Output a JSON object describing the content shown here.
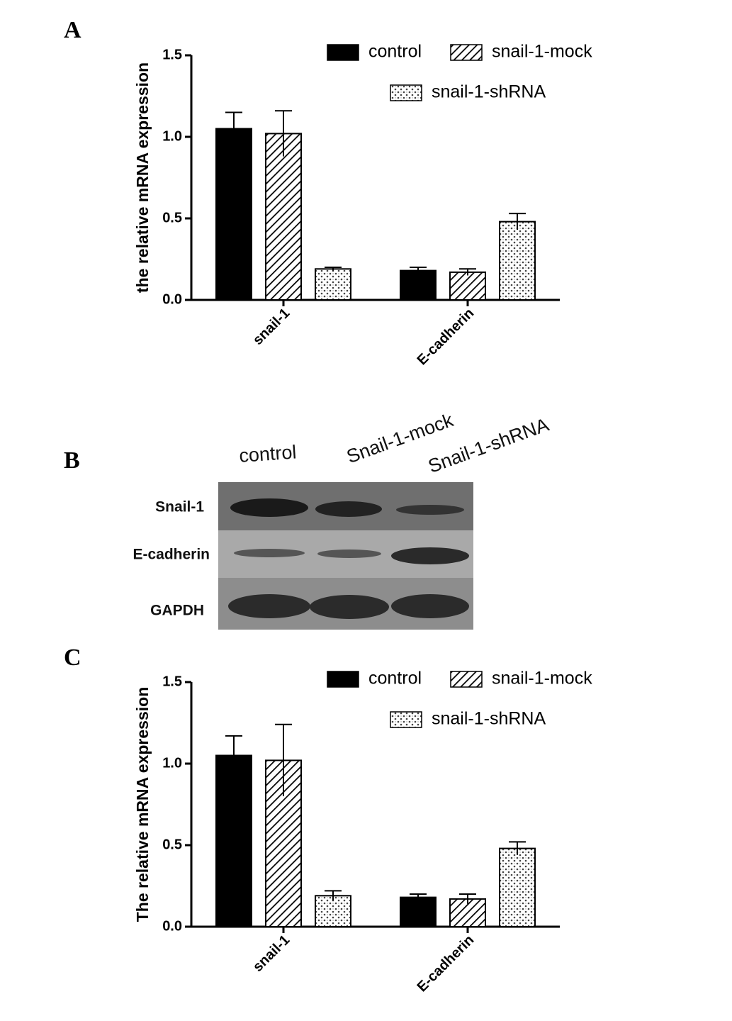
{
  "panel_labels": [
    "A",
    "B",
    "C"
  ],
  "blot": {
    "lanes": [
      "control",
      "Snail-1-mock",
      "Snail-1-shRNA"
    ],
    "rows": [
      "Snail-1",
      "E-cadherin",
      "GAPDH"
    ]
  },
  "chart_data": [
    {
      "type": "bar",
      "y_label": "the relative mRNA expression",
      "categories": [
        "snail-1",
        "E-cadherin"
      ],
      "series": [
        {
          "name": "control",
          "color": "#000000",
          "pattern": "solid",
          "values": [
            1.05,
            0.18
          ],
          "errors": [
            0.1,
            0.02
          ]
        },
        {
          "name": "snail-1-mock",
          "color": "#000000",
          "pattern": "hatch",
          "values": [
            1.02,
            0.17
          ],
          "errors": [
            0.14,
            0.02
          ]
        },
        {
          "name": "snail-1-shRNA",
          "color": "#000000",
          "pattern": "dots",
          "values": [
            0.19,
            0.48
          ],
          "errors": [
            0.01,
            0.05
          ]
        }
      ],
      "ylim": [
        0,
        1.5
      ],
      "yticks": [
        {
          "value": 0,
          "label": "0.0"
        },
        0.5,
        {
          "value": 1,
          "label": "1.0"
        },
        1.5
      ]
    },
    {
      "type": "bar",
      "y_label": "The relative mRNA expression",
      "categories": [
        "snail-1",
        "E-cadherin"
      ],
      "series": [
        {
          "name": "control",
          "color": "#000000",
          "pattern": "solid",
          "values": [
            1.05,
            0.18
          ],
          "errors": [
            0.12,
            0.02
          ]
        },
        {
          "name": "snail-1-mock",
          "color": "#000000",
          "pattern": "hatch",
          "values": [
            1.02,
            0.17
          ],
          "errors": [
            0.22,
            0.03
          ]
        },
        {
          "name": "snail-1-shRNA",
          "color": "#000000",
          "pattern": "dots",
          "values": [
            0.19,
            0.48
          ],
          "errors": [
            0.03,
            0.04
          ]
        }
      ],
      "ylim": [
        0,
        1.5
      ],
      "yticks": [
        {
          "value": 0,
          "label": "0.0"
        },
        0.5,
        {
          "value": 1,
          "label": "1.0"
        },
        1.5
      ]
    }
  ]
}
